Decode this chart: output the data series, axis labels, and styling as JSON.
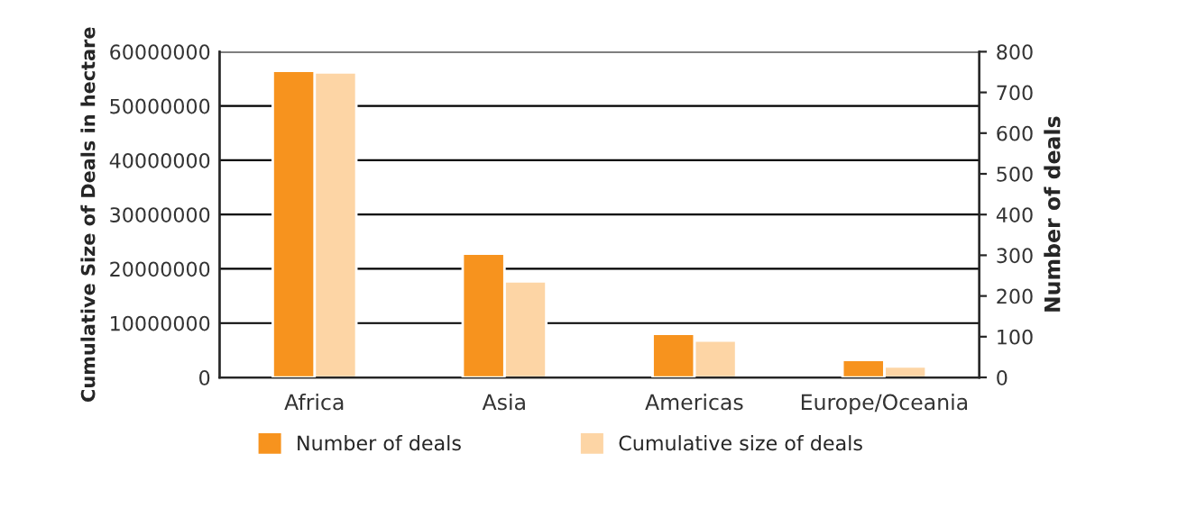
{
  "chart_data": {
    "type": "bar",
    "categories": [
      "Africa",
      "Asia",
      "Americas",
      "Europe/Oceania"
    ],
    "ylabel": "Cumulative Size of Deals in hectare",
    "y2label": "Number of deals",
    "series": [
      {
        "name": "Number of deals",
        "color": "#f7931e",
        "values": [
          753,
          304,
          107,
          43
        ],
        "axis": "y2"
      },
      {
        "name": "Cumulative size of deals",
        "color": "#fdd5a5",
        "values": [
          56200000,
          17700000,
          6800000,
          2000000
        ]
      }
    ],
    "ylim": [
      0,
      60000000
    ],
    "yticks": [
      0,
      10000000,
      20000000,
      30000000,
      40000000,
      50000000,
      60000000
    ],
    "y2lim": [
      0,
      800
    ],
    "y2ticks": [
      0,
      100,
      200,
      300,
      400,
      500,
      600,
      700,
      800
    ],
    "grid": "y",
    "legend": "bottom"
  }
}
